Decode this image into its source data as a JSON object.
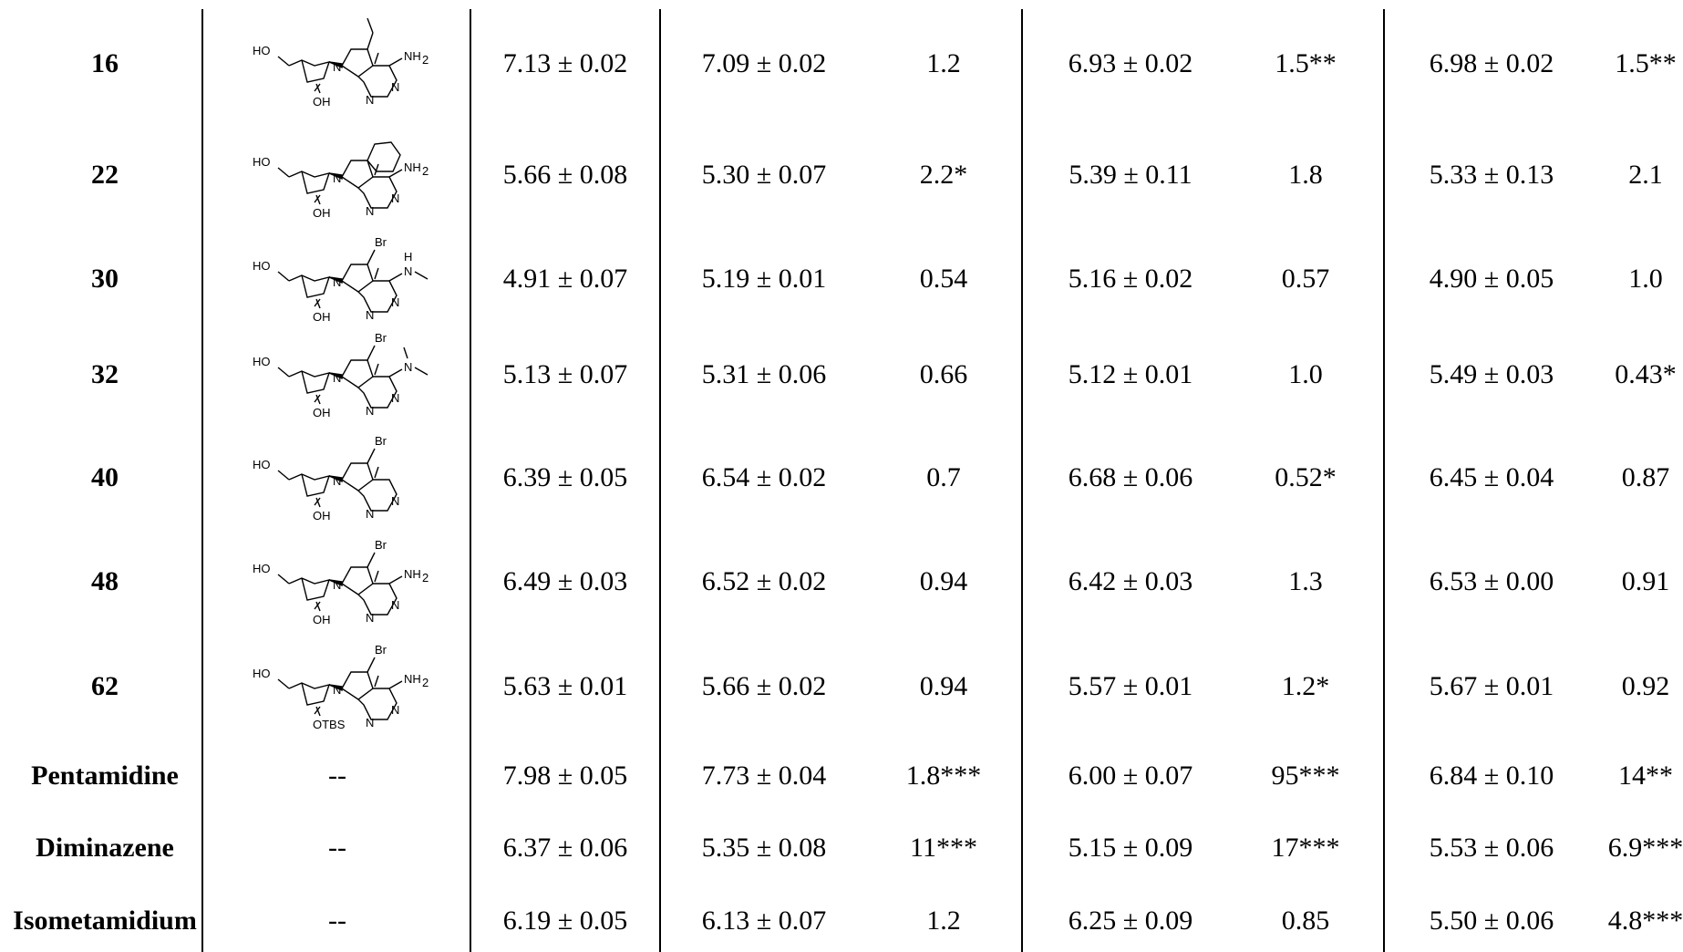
{
  "rows": [
    {
      "id": "16",
      "structure": {
        "substituent": "vinyl",
        "amine": "NH2",
        "sugar_oh": "OH"
      },
      "values": [
        "7.13 ± 0.02",
        "7.09 ± 0.02",
        "1.2",
        "6.93 ± 0.02",
        "1.5**",
        "6.98 ± 0.02",
        "1.5**"
      ]
    },
    {
      "id": "22",
      "structure": {
        "substituent": "phenyl",
        "amine": "NH2",
        "sugar_oh": "OH"
      },
      "values": [
        "5.66 ± 0.08",
        "5.30 ± 0.07",
        "2.2*",
        "5.39 ± 0.11",
        "1.8",
        "5.33 ± 0.13",
        "2.1"
      ]
    },
    {
      "id": "30",
      "structure": {
        "substituent": "Br",
        "amine": "H-N-methyl",
        "sugar_oh": "OH"
      },
      "values": [
        "4.91 ± 0.07",
        "5.19 ± 0.01",
        "0.54",
        "5.16 ± 0.02",
        "0.57",
        "4.90 ± 0.05",
        "1.0"
      ]
    },
    {
      "id": "32",
      "structure": {
        "substituent": "Br",
        "amine": "N,N-dimethyl",
        "sugar_oh": "OH"
      },
      "values": [
        "5.13 ± 0.07",
        "5.31 ± 0.06",
        "0.66",
        "5.12 ± 0.01",
        "1.0",
        "5.49 ± 0.03",
        "0.43*"
      ]
    },
    {
      "id": "40",
      "structure": {
        "substituent": "Br",
        "amine": "none",
        "sugar_oh": "OH"
      },
      "values": [
        "6.39 ± 0.05",
        "6.54 ± 0.02",
        "0.7",
        "6.68 ± 0.06",
        "0.52*",
        "6.45 ± 0.04",
        "0.87"
      ]
    },
    {
      "id": "48",
      "structure": {
        "substituent": "Br",
        "amine": "NH2",
        "sugar_oh": "OH"
      },
      "values": [
        "6.49 ± 0.03",
        "6.52 ± 0.02",
        "0.94",
        "6.42 ± 0.03",
        "1.3",
        "6.53 ± 0.00",
        "0.91"
      ]
    },
    {
      "id": "62",
      "structure": {
        "substituent": "Br",
        "amine": "NH2",
        "sugar_oh": "OTBS"
      },
      "values": [
        "5.63 ± 0.01",
        "5.66 ± 0.02",
        "0.94",
        "5.57 ± 0.01",
        "1.2*",
        "5.67 ± 0.01",
        "0.92"
      ]
    },
    {
      "id": "Pentamidine",
      "structure_text": "--",
      "values": [
        "7.98 ± 0.05",
        "7.73 ± 0.04",
        "1.8***",
        "6.00 ± 0.07",
        "95***",
        "6.84 ± 0.10",
        "14**"
      ]
    },
    {
      "id": "Diminazene",
      "structure_text": "--",
      "values": [
        "6.37 ± 0.06",
        "5.35 ± 0.08",
        "11***",
        "5.15 ± 0.09",
        "17***",
        "5.53 ± 0.06",
        "6.9***"
      ]
    },
    {
      "id": "Isometamidium",
      "structure_text": "--",
      "values": [
        "6.19 ± 0.05",
        "6.13 ± 0.07",
        "1.2",
        "6.25 ± 0.09",
        "0.85",
        "5.50 ± 0.06",
        "4.8***"
      ]
    }
  ],
  "labels": {
    "HO": "HO",
    "OH": "OH",
    "OTBS": "OTBS",
    "NH2": "NH",
    "NH2_sub": "2",
    "N": "N",
    "Br": "Br",
    "H": "H"
  }
}
